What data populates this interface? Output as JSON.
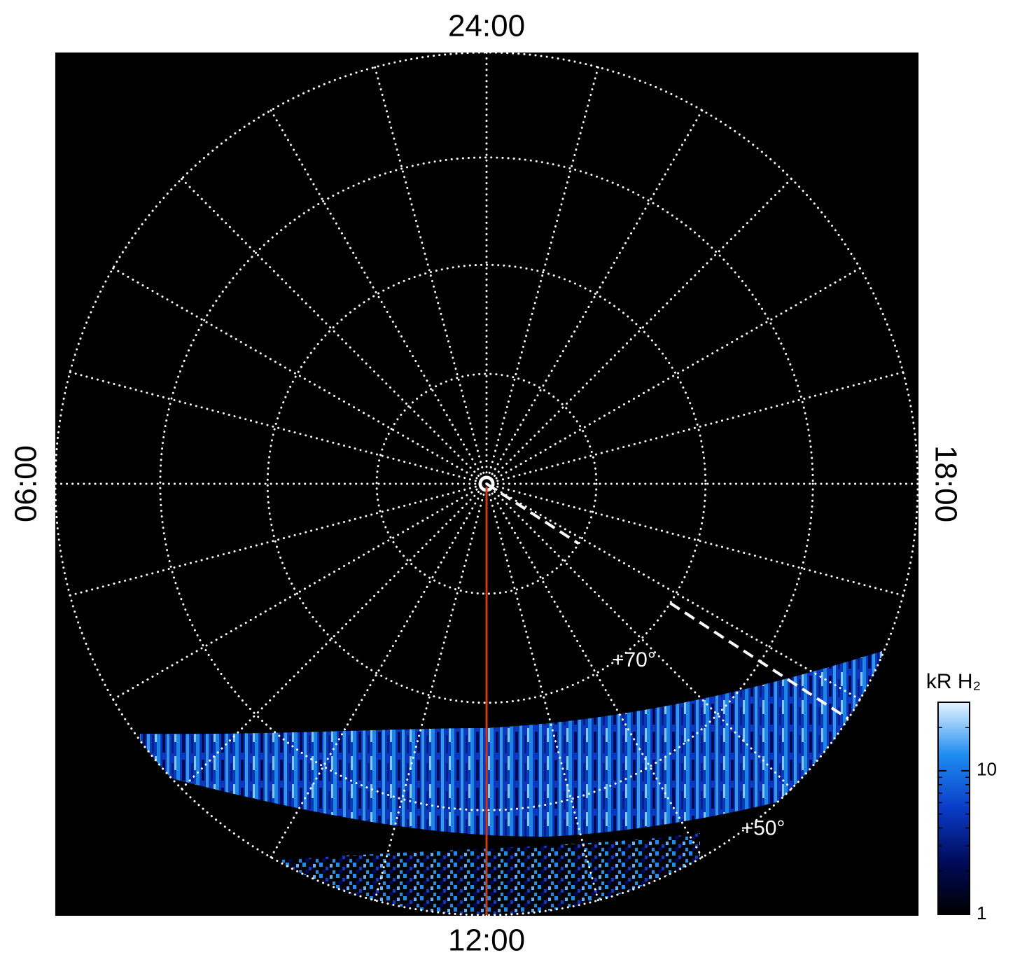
{
  "chart_data": {
    "type": "polar",
    "background": "#000000",
    "grid_color": "#ffffff",
    "xlim": [
      0,
      24
    ],
    "xticks": [
      {
        "value": 0,
        "label": "24:00"
      },
      {
        "value": 6,
        "label": "06:00"
      },
      {
        "value": 12,
        "label": "12:00"
      },
      {
        "value": 18,
        "label": "18:00"
      }
    ],
    "minor_xtick_step": 1,
    "rlim": [
      90,
      50
    ],
    "rticks": [
      80,
      70,
      60,
      50
    ],
    "rlabels": [
      {
        "value": 70,
        "label": "+70°"
      },
      {
        "value": 50,
        "label": "+50°"
      }
    ],
    "rlabel_hour": 14.5,
    "meridian": {
      "hour": 12,
      "color": "#d03a10"
    },
    "dashed_line": {
      "hour": 15.8,
      "lat_ranges": [
        [
          90,
          80
        ],
        [
          70,
          50
        ]
      ],
      "color": "#ffffff"
    },
    "colorbar": {
      "title": "kR H₂",
      "log": true,
      "lim": [
        1,
        30
      ],
      "ticks": [
        1,
        10
      ],
      "colors": [
        "#000000",
        "#000a5a",
        "#0a3cc8",
        "#1e8cf0",
        "#e6f4ff"
      ]
    }
  }
}
